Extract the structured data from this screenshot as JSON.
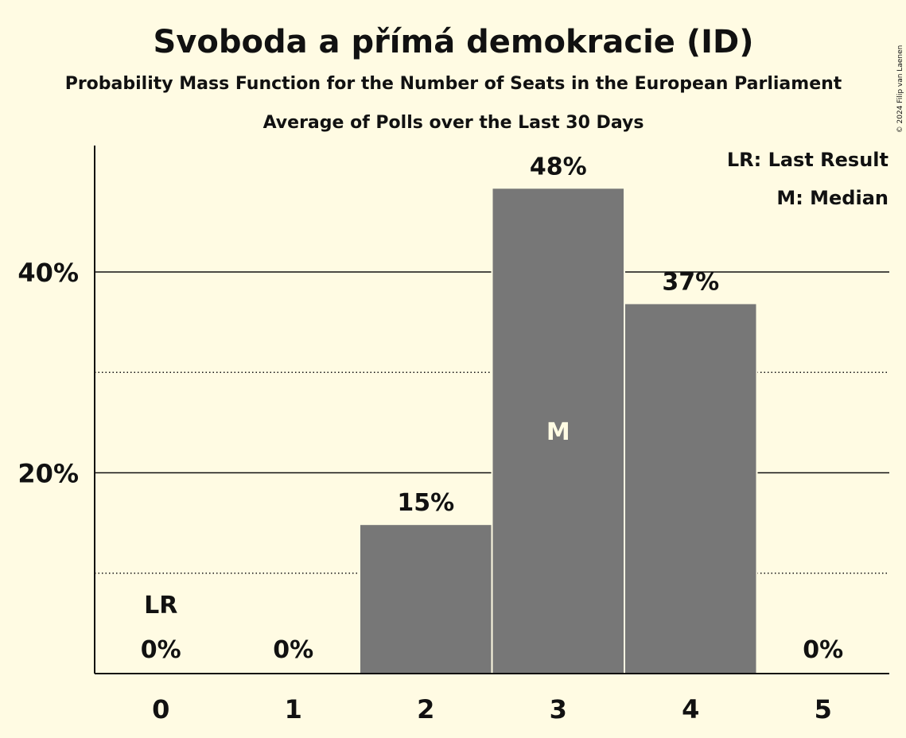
{
  "chart_data": {
    "type": "bar",
    "title": "Svoboda a přímá demokracie (ID)",
    "subtitle": "Probability Mass Function for the Number of Seats in the European Parliament",
    "subtitle2": "Average of Polls over the Last 30 Days",
    "copyright": "© 2024 Filip van Laenen",
    "categories": [
      "0",
      "1",
      "2",
      "3",
      "4",
      "5"
    ],
    "values": [
      0,
      0,
      14.8,
      48.3,
      36.8,
      0
    ],
    "value_labels": [
      "0%",
      "0%",
      "15%",
      "48%",
      "37%",
      "0%"
    ],
    "y_ticks": [
      20,
      40
    ],
    "y_tick_labels": [
      "20%",
      "40%"
    ],
    "ylim": [
      0,
      52.6
    ],
    "grid": {
      "major": [
        20,
        40
      ],
      "minor": [
        10,
        30
      ]
    },
    "last_result_index": 0,
    "median_index": 3,
    "markers": {
      "last_result": "LR",
      "median": "M"
    },
    "legend": {
      "position": "top-right",
      "items": [
        "LR: Last Result",
        "M: Median"
      ]
    },
    "colors": {
      "background": "#fffbe3",
      "bar": "#777777",
      "text": "#111111",
      "median_text": "#fffbe3"
    }
  }
}
